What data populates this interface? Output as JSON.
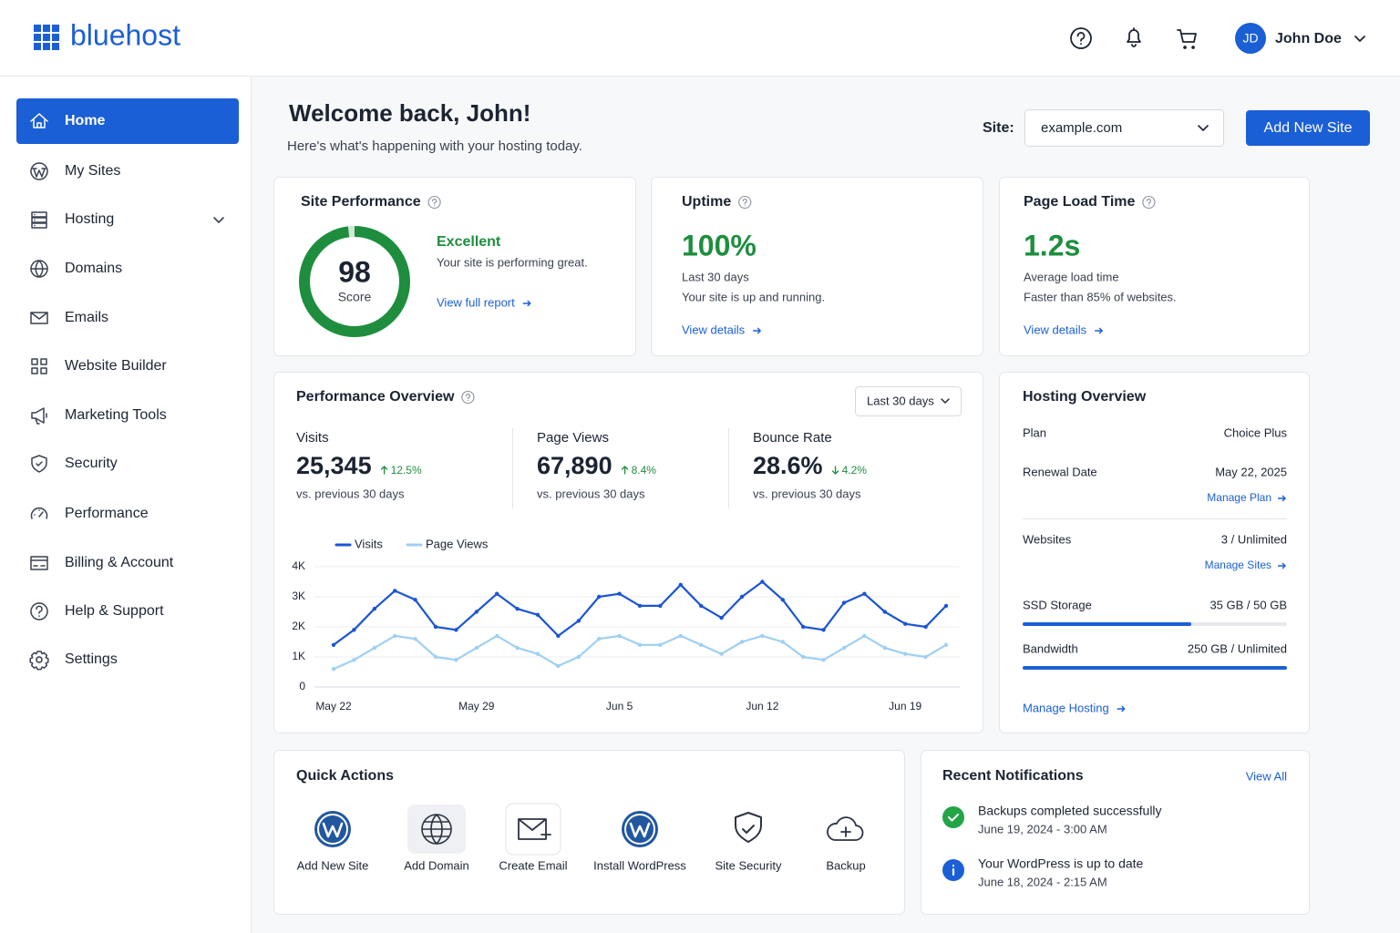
{
  "header": {
    "logo": "bluehost",
    "user_initials": "JD",
    "user_name": "John Doe"
  },
  "sidebar": [
    "Home",
    "My Sites",
    "Hosting",
    "Domains",
    "Emails",
    "Website Builder",
    "Marketing Tools",
    "Security",
    "Performance",
    "Billing & Account",
    "Help & Support",
    "Settings"
  ],
  "welcome": {
    "title": "Welcome back, John!",
    "subtitle": "Here's what's happening with your hosting today."
  },
  "site_selector": {
    "label": "Site:",
    "value": "example.com"
  },
  "add_site_button": "Add New Site",
  "site_performance": {
    "title": "Site Performance",
    "score": 98,
    "score_label": "Score",
    "status": "Excellent",
    "description": "Your site is performing great.",
    "link": "View full report"
  },
  "uptime": {
    "title": "Uptime",
    "value": "100%",
    "line1": "Last 30 days",
    "line2": "Your site is up and running.",
    "link": "View details"
  },
  "page_load": {
    "title": "Page Load Time",
    "value": "1.2s",
    "line1": "Average load time",
    "line2": "Faster than 85% of websites.",
    "link": "View details"
  },
  "performance_overview": {
    "title": "Performance Overview",
    "range": "Last 30 days",
    "metrics": [
      {
        "label": "Visits",
        "value": "25,345",
        "change": "12.5%",
        "direction": "up",
        "note": "vs. previous 30 days"
      },
      {
        "label": "Page Views",
        "value": "67,890",
        "change": "8.4%",
        "direction": "up",
        "note": "vs. previous 30 days"
      },
      {
        "label": "Bounce Rate",
        "value": "28.6%",
        "change": "4.2%",
        "direction": "down",
        "note": "vs. previous 30 days"
      }
    ]
  },
  "chart_data": {
    "type": "line",
    "categories": [
      "May 22",
      null,
      null,
      null,
      null,
      null,
      null,
      "May 29",
      null,
      null,
      null,
      null,
      null,
      null,
      "Jun 5",
      null,
      null,
      null,
      null,
      null,
      null,
      "Jun 12",
      null,
      null,
      null,
      null,
      null,
      null,
      "Jun 19",
      null,
      null
    ],
    "series": [
      {
        "name": "Visits",
        "color": "#1b55d4",
        "values": [
          1400,
          1900,
          2600,
          3200,
          2900,
          2000,
          1900,
          2500,
          3100,
          2600,
          2400,
          1700,
          2200,
          3000,
          3100,
          2700,
          2700,
          3400,
          2700,
          2300,
          3000,
          3500,
          2900,
          2000,
          1900,
          2800,
          3100,
          2500,
          2100,
          2000,
          2700
        ]
      },
      {
        "name": "Page Views",
        "color": "#9fd0f2",
        "values": [
          600,
          900,
          1300,
          1700,
          1600,
          1000,
          900,
          1300,
          1700,
          1300,
          1100,
          700,
          1000,
          1600,
          1700,
          1400,
          1400,
          1700,
          1400,
          1100,
          1500,
          1700,
          1500,
          1000,
          900,
          1300,
          1700,
          1300,
          1100,
          1000,
          1400
        ]
      }
    ],
    "ylim": [
      0,
      4000
    ],
    "yticks": [
      0,
      {
        "value": 1000,
        "label": "1K"
      },
      {
        "value": 2000,
        "label": "2K"
      },
      {
        "value": 3000,
        "label": "3K"
      },
      {
        "value": 4000,
        "label": "4K"
      }
    ],
    "grid": true,
    "legend": "top-left"
  },
  "hosting_overview": {
    "title": "Hosting Overview",
    "rows": [
      {
        "label": "Plan",
        "value": "Choice Plus"
      },
      {
        "label": "Renewal Date",
        "value": "May 22, 2025",
        "link": "Manage Plan"
      },
      {
        "label": "Websites",
        "value": "3 / Unlimited",
        "link": "Manage Sites"
      },
      {
        "label": "SSD Storage",
        "value": "35 GB / 50 GB"
      },
      {
        "label": "Bandwidth",
        "value": "250 GB / Unlimited"
      }
    ],
    "link": "Manage Hosting"
  },
  "quick_actions": {
    "title": "Quick Actions",
    "items": [
      "Add New Site",
      "Add Domain",
      "Create Email",
      "Install WordPress",
      "Site Security",
      "Backup"
    ]
  },
  "notifications": {
    "title": "Recent Notifications",
    "link": "View All",
    "items": [
      {
        "title": "Backups completed successfully",
        "time": "June 19, 2024 - 3:00 AM",
        "kind": "success"
      },
      {
        "title": "Your WordPress is up to date",
        "time": "June 18, 2024 - 2:15 AM",
        "kind": "info"
      }
    ]
  }
}
